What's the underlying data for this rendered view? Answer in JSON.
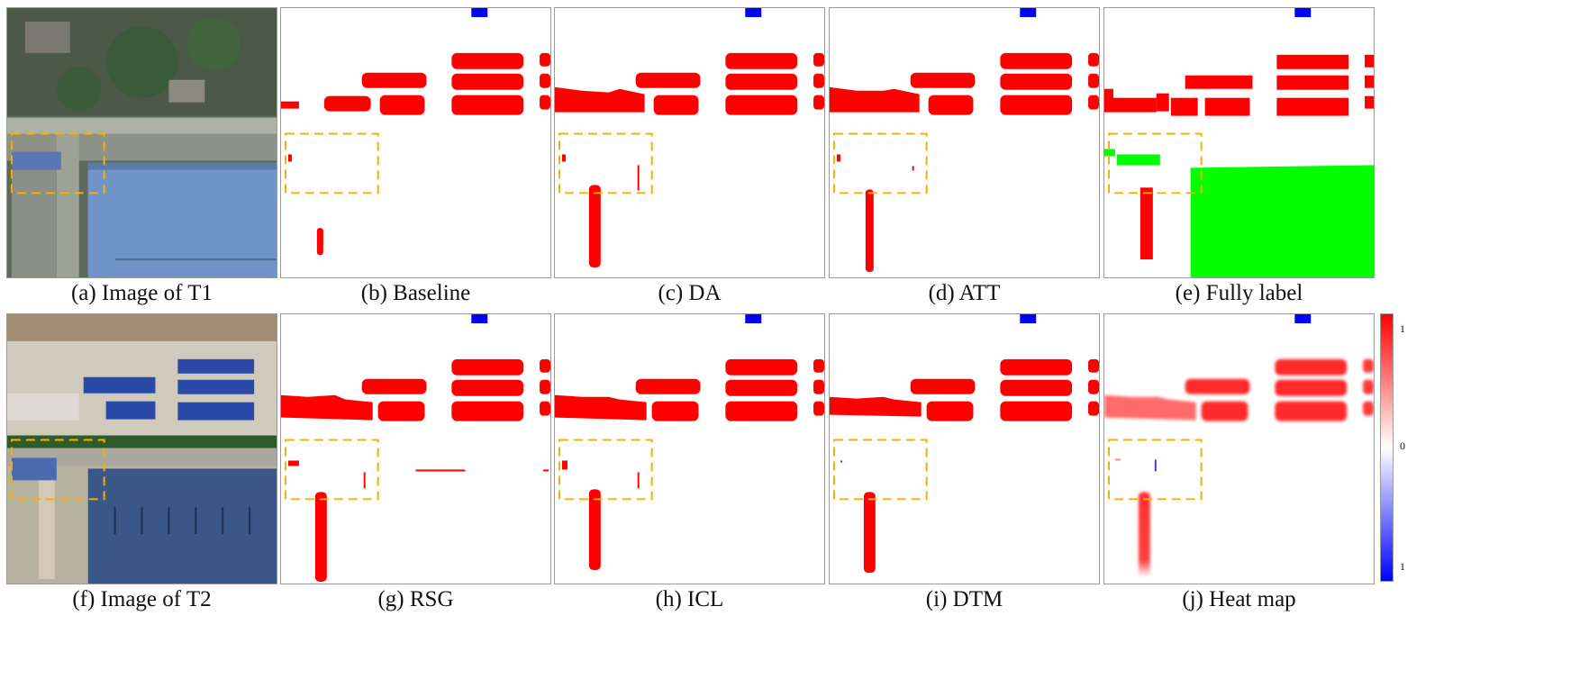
{
  "figure": {
    "panels": [
      {
        "id": "a",
        "caption": "(a) Image of T1"
      },
      {
        "id": "b",
        "caption": "(b) Baseline"
      },
      {
        "id": "c",
        "caption": "(c) DA"
      },
      {
        "id": "d",
        "caption": "(d) ATT"
      },
      {
        "id": "e",
        "caption": "(e) Fully label"
      },
      {
        "id": "f",
        "caption": "(f) Image of T2"
      },
      {
        "id": "g",
        "caption": "(g) RSG"
      },
      {
        "id": "h",
        "caption": "(h) ICL"
      },
      {
        "id": "i",
        "caption": "(i) DTM"
      },
      {
        "id": "j",
        "caption": "(j) Heat map"
      }
    ],
    "colorbar": {
      "ticks": [
        "1",
        "0",
        "1"
      ],
      "colors": {
        "top": "#ff0000",
        "middle": "#ffffff",
        "bottom": "#0000ff"
      }
    },
    "colors": {
      "change_mask": "#ff0000",
      "unchanged_marker": "#0000ff",
      "new_building": "#00ff00",
      "highlight_box": "#f5b000"
    }
  }
}
